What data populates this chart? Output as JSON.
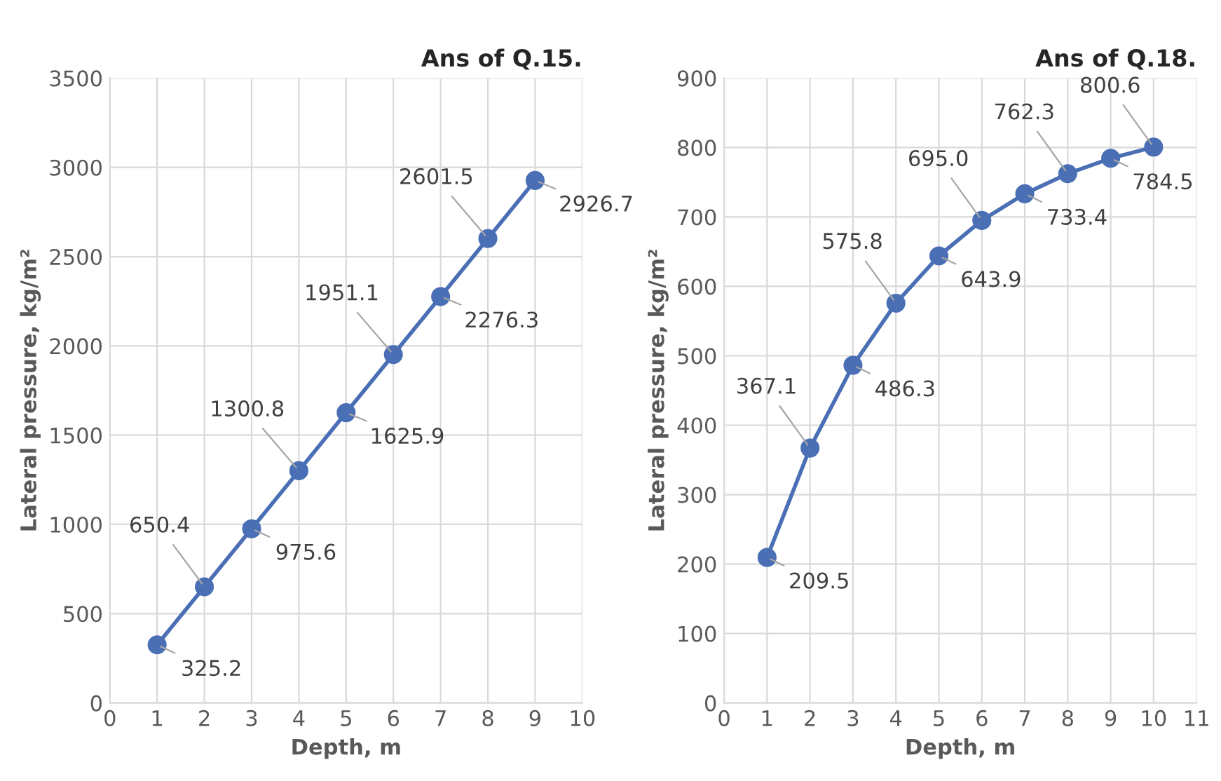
{
  "chart_data": [
    {
      "type": "line",
      "title": "Ans of Q.15.",
      "xlabel": "Depth, m",
      "ylabel": "Lateral pressure, kg/m²",
      "x": [
        1,
        2,
        3,
        4,
        5,
        6,
        7,
        8,
        9
      ],
      "series": [
        {
          "color": "#4a6fb5",
          "values": [
            325.2,
            650.4,
            975.6,
            1300.8,
            1625.9,
            1951.1,
            2276.3,
            2601.5,
            2926.7
          ],
          "value_labels": [
            "325.2",
            "650.4",
            "975.6",
            "1300.8",
            "1625.9",
            "1951.1",
            "2276.3",
            "2601.5",
            "2926.7"
          ]
        }
      ],
      "xlim": [
        0,
        10
      ],
      "xticks": [
        0,
        1,
        2,
        3,
        4,
        5,
        6,
        7,
        8,
        9,
        10
      ],
      "ylim": [
        0,
        3500
      ],
      "yticks": [
        0,
        500,
        1000,
        1500,
        2000,
        2500,
        3000,
        3500
      ],
      "grid": true,
      "marker": "circle",
      "line_style": "solid"
    },
    {
      "type": "line",
      "title": "Ans of Q.18.",
      "xlabel": "Depth, m",
      "ylabel": "Lateral pressure, kg/m²",
      "x": [
        1,
        2,
        3,
        4,
        5,
        6,
        7,
        8,
        9,
        10
      ],
      "series": [
        {
          "color": "#4a6fb5",
          "values": [
            209.5,
            367.1,
            486.3,
            575.8,
            643.9,
            695.0,
            733.4,
            762.3,
            784.5,
            800.6
          ],
          "value_labels": [
            "209.5",
            "367.1",
            "486.3",
            "575.8",
            "643.9",
            "695.0",
            "733.4",
            "762.3",
            "784.5",
            "800.6"
          ]
        }
      ],
      "xlim": [
        0,
        11
      ],
      "xticks": [
        0,
        1,
        2,
        3,
        4,
        5,
        6,
        7,
        8,
        9,
        10,
        11
      ],
      "ylim": [
        0,
        900
      ],
      "yticks": [
        0,
        100,
        200,
        300,
        400,
        500,
        600,
        700,
        800,
        900
      ],
      "grid": true,
      "marker": "circle",
      "line_style": "solid"
    }
  ]
}
